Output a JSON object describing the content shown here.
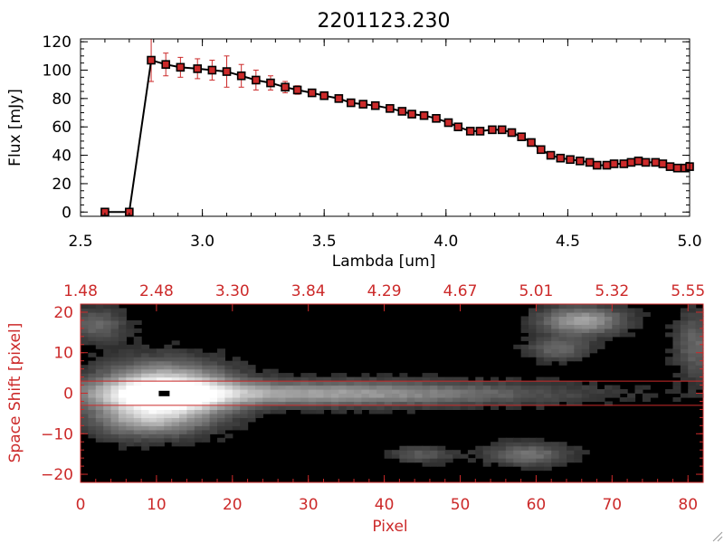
{
  "chart_data": [
    {
      "type": "line",
      "title": "2201123.230",
      "xlabel": "Lambda [um]",
      "ylabel": "Flux [mJy]",
      "xlim": [
        2.5,
        5.0
      ],
      "ylim": [
        -3,
        122
      ],
      "xticks": [
        2.5,
        3.0,
        3.5,
        4.0,
        4.5,
        5.0
      ],
      "xtick_labels": [
        "2.5",
        "3.0",
        "3.5",
        "4.0",
        "4.5",
        "5.0"
      ],
      "yticks": [
        0,
        20,
        40,
        60,
        80,
        100,
        120
      ],
      "ytick_labels": [
        "0",
        "20",
        "40",
        "60",
        "80",
        "100",
        "120"
      ],
      "line_color": "#000000",
      "marker_color": "#cc2a2a",
      "errorbar_color": "#cc2a2a",
      "x": [
        2.6,
        2.7,
        2.79,
        2.85,
        2.91,
        2.98,
        3.04,
        3.1,
        3.16,
        3.22,
        3.28,
        3.34,
        3.39,
        3.45,
        3.5,
        3.56,
        3.61,
        3.66,
        3.71,
        3.77,
        3.82,
        3.86,
        3.91,
        3.96,
        4.01,
        4.05,
        4.1,
        4.14,
        4.19,
        4.23,
        4.27,
        4.31,
        4.35,
        4.39,
        4.43,
        4.47,
        4.51,
        4.55,
        4.59,
        4.62,
        4.66,
        4.69,
        4.73,
        4.76,
        4.79,
        4.82,
        4.86,
        4.89,
        4.92,
        4.95,
        4.98,
        5.0
      ],
      "y": [
        0,
        0,
        107,
        104,
        102,
        101,
        100,
        99,
        96,
        93,
        91,
        88,
        86,
        84,
        82,
        80,
        77,
        76,
        75,
        73,
        71,
        69,
        68,
        66,
        63,
        60,
        57,
        57,
        58,
        58,
        56,
        53,
        49,
        44,
        40,
        38,
        37,
        36,
        35,
        33,
        33,
        34,
        34,
        35,
        36,
        35,
        35,
        34,
        32,
        31,
        31,
        32
      ],
      "yerr": [
        0,
        0,
        15,
        8,
        7,
        7,
        7,
        11,
        8,
        7,
        5,
        4,
        3,
        2,
        2,
        2,
        2,
        2,
        2,
        2,
        2,
        1,
        1,
        1,
        1,
        1,
        1,
        1,
        1,
        1,
        1,
        1,
        1,
        1,
        1,
        1,
        1,
        1,
        1,
        1,
        1,
        1,
        1,
        1,
        1,
        1,
        1,
        1,
        1,
        1,
        2,
        2
      ]
    },
    {
      "type": "heatmap",
      "xlabel": "Pixel",
      "ylabel": "Space Shift [pixel]",
      "xlim": [
        0,
        82
      ],
      "ylim": [
        -22,
        22
      ],
      "xticks": [
        0,
        10,
        20,
        30,
        40,
        50,
        60,
        70,
        80
      ],
      "xtick_labels": [
        "0",
        "10",
        "20",
        "30",
        "40",
        "50",
        "60",
        "70",
        "80"
      ],
      "yticks": [
        -20,
        -10,
        0,
        10,
        20
      ],
      "ytick_labels": [
        "−20",
        "−10",
        "0",
        "10",
        "20"
      ],
      "top_axis_values": [
        1.48,
        2.48,
        3.3,
        3.84,
        4.29,
        4.67,
        5.01,
        5.32,
        5.55
      ],
      "top_axis_labels": [
        "1.48",
        "2.48",
        "3.30",
        "3.84",
        "4.29",
        "4.67",
        "5.01",
        "5.32",
        "5.55"
      ],
      "aperture_lines": [
        3,
        -3
      ],
      "axis_color": "#cc2a2a",
      "colormap": "grayscale",
      "source_blobs": [
        {
          "x": 11,
          "y": 0,
          "sx": 6,
          "sy": 5,
          "amp": 1.0
        },
        {
          "x": 30,
          "y": 0,
          "sx": 22,
          "sy": 2.2,
          "amp": 0.55
        },
        {
          "x": 66,
          "y": 18,
          "sx": 4,
          "sy": 2.5,
          "amp": 0.55
        },
        {
          "x": 63,
          "y": 11,
          "sx": 3,
          "sy": 2,
          "amp": 0.3
        },
        {
          "x": 59,
          "y": -15,
          "sx": 4,
          "sy": 2,
          "amp": 0.35
        },
        {
          "x": 45,
          "y": -15,
          "sx": 3,
          "sy": 1.5,
          "amp": 0.25
        },
        {
          "x": 2,
          "y": 17,
          "sx": 3,
          "sy": 3,
          "amp": 0.3
        },
        {
          "x": 8,
          "y": -7,
          "sx": 5,
          "sy": 3,
          "amp": 0.3
        },
        {
          "x": 81,
          "y": 12,
          "sx": 2,
          "sy": 6,
          "amp": 0.3
        }
      ]
    }
  ]
}
